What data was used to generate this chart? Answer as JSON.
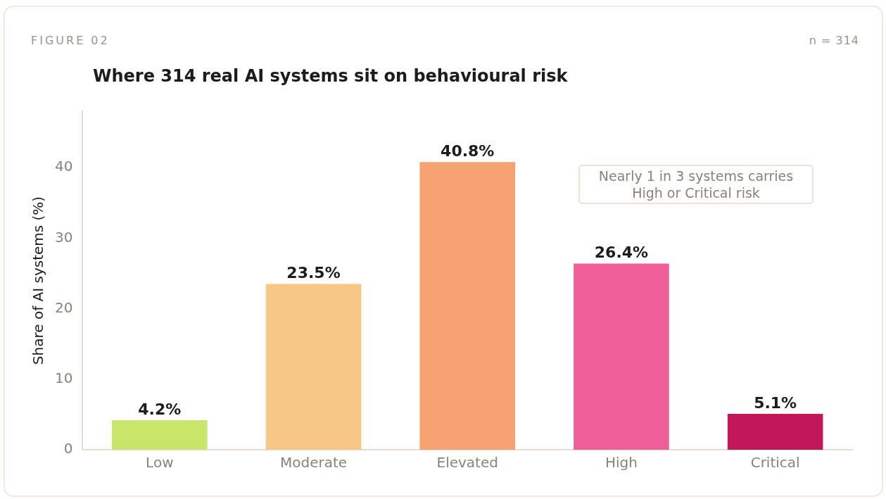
{
  "chart_data": {
    "type": "bar",
    "title": "Where 314 real AI systems sit on behavioural risk",
    "annotations": [
      "FIGURE 02",
      "n = 314",
      "Nearly 1 in 3 systems carries\nHigh or Critical risk"
    ],
    "categories": [
      "Low",
      "Moderate",
      "Elevated",
      "High",
      "Critical"
    ],
    "values": [
      4.2,
      23.5,
      40.8,
      26.4,
      5.1
    ],
    "colors": [
      "#c8e66a",
      "#f7c785",
      "#f6a272",
      "#f05e9a",
      "#c2185b"
    ],
    "ylabel": "Share of AI systems (%)",
    "ylim": [
      0,
      48
    ],
    "yticks": [
      0,
      10,
      20,
      30,
      40
    ],
    "value_labels": [
      "4.2%",
      "23.5%",
      "40.8%",
      "26.4%",
      "5.1%"
    ]
  }
}
